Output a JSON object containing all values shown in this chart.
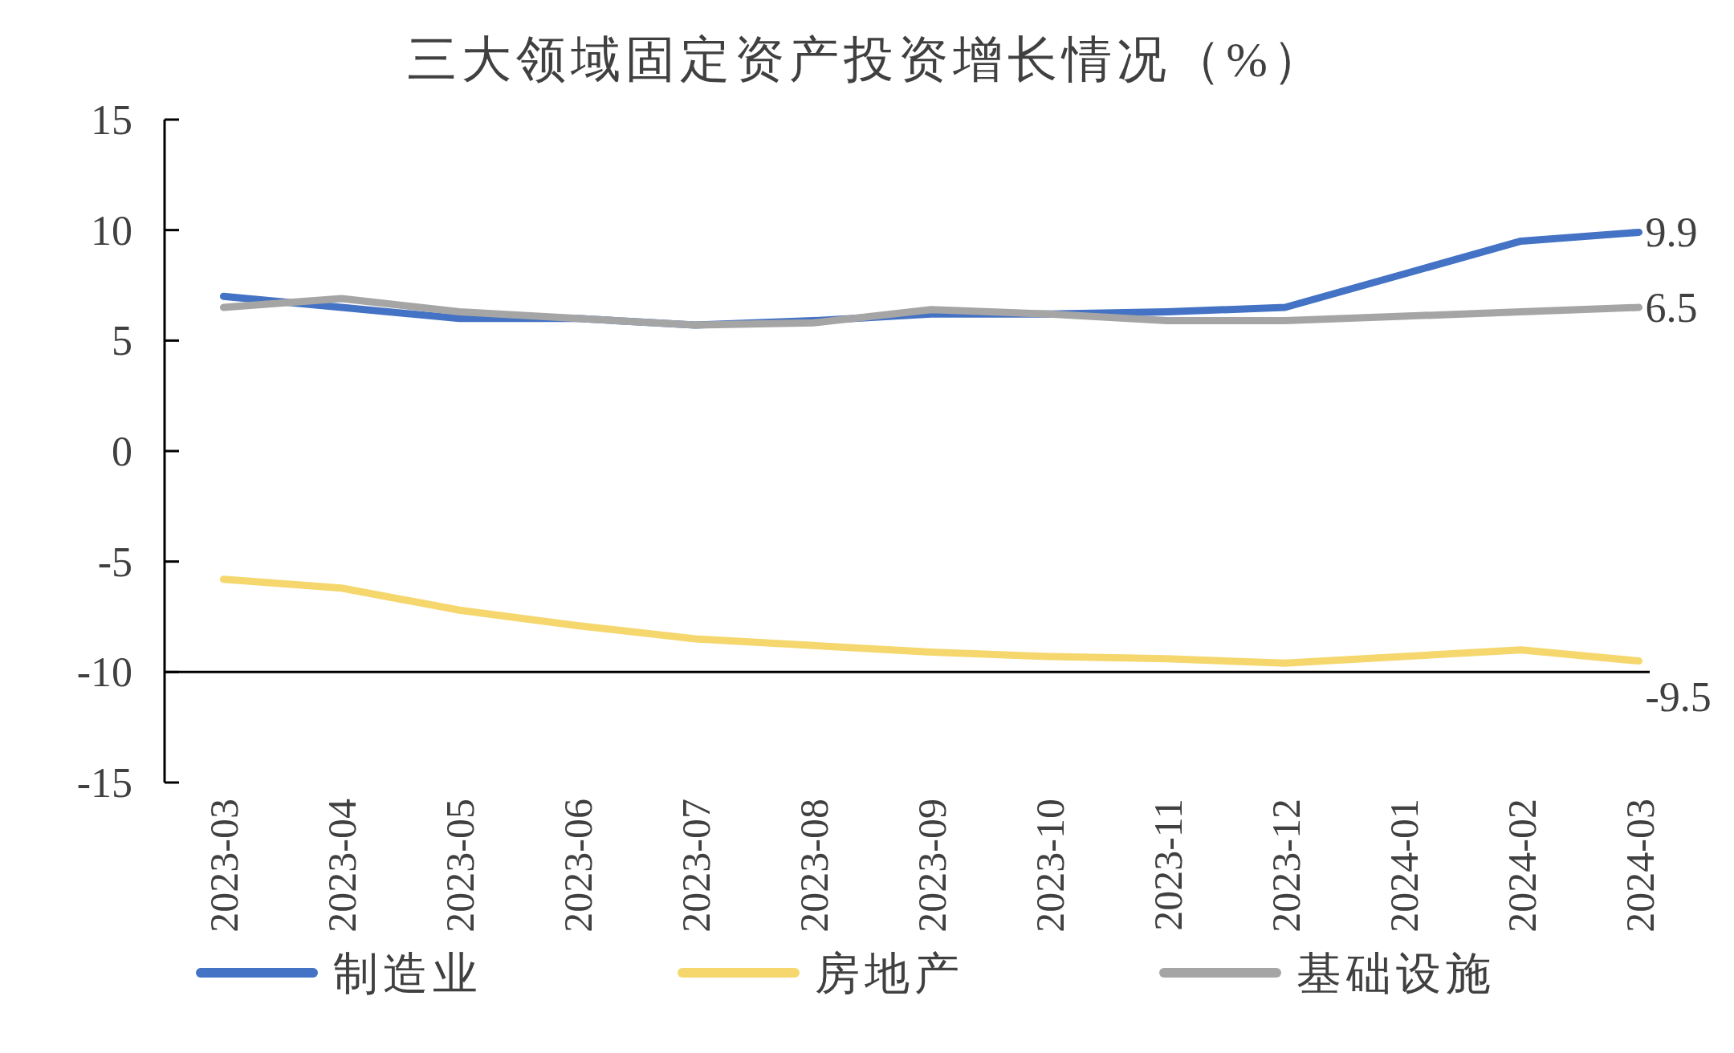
{
  "chart_data": {
    "type": "line",
    "title": "三大领域固定资产投资增长情况（%）",
    "categories": [
      "2023-03",
      "2023-04",
      "2023-05",
      "2023-06",
      "2023-07",
      "2023-08",
      "2023-09",
      "2023-10",
      "2023-11",
      "2023-12",
      "2024-01",
      "2024-02",
      "2024-03"
    ],
    "series": [
      {
        "name": "制造业",
        "color": "#4472c4",
        "values": [
          7.0,
          6.5,
          6.0,
          6.0,
          5.7,
          5.9,
          6.2,
          6.2,
          6.3,
          6.5,
          8.0,
          9.5,
          9.9
        ],
        "value_labels": [
          null,
          null,
          null,
          null,
          null,
          null,
          null,
          null,
          null,
          null,
          null,
          null,
          "9.9"
        ]
      },
      {
        "name": "房地产",
        "color": "#f5d76e",
        "values": [
          -5.8,
          -6.2,
          -7.2,
          -7.9,
          -8.5,
          -8.8,
          -9.1,
          -9.3,
          -9.4,
          -9.6,
          -9.3,
          -9.0,
          -9.5
        ],
        "value_labels": [
          null,
          null,
          null,
          null,
          null,
          null,
          null,
          null,
          null,
          null,
          null,
          null,
          "-9.5"
        ]
      },
      {
        "name": "基础设施",
        "color": "#a5a5a5",
        "values": [
          6.5,
          6.9,
          6.3,
          6.0,
          5.7,
          5.8,
          6.4,
          6.2,
          5.9,
          5.9,
          6.1,
          6.3,
          6.5
        ],
        "value_labels": [
          null,
          null,
          null,
          null,
          null,
          null,
          null,
          null,
          null,
          null,
          null,
          null,
          "6.5"
        ]
      }
    ],
    "ylim": [
      -15,
      15
    ],
    "yticks": [
      -15,
      -10,
      -5,
      0,
      5,
      10,
      15
    ],
    "ref_lines": [
      {
        "axis": "y",
        "value": -10,
        "color": "#000000"
      }
    ],
    "grid": false,
    "legend": "bottom",
    "marker": "none",
    "line_style": "solid"
  }
}
